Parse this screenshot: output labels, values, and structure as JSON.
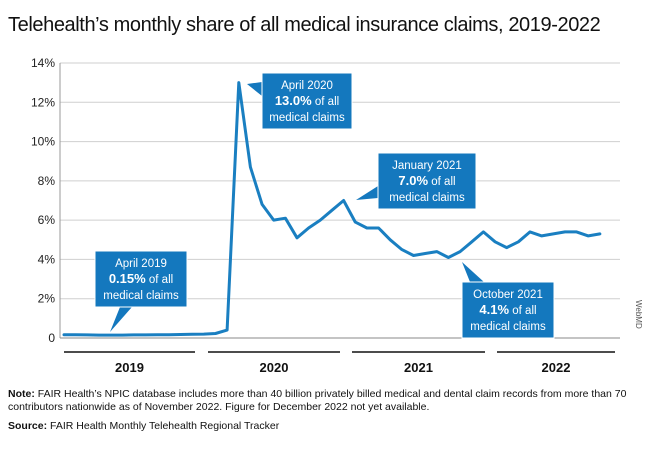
{
  "title": "Telehealth’s monthly share of all medical insurance claims, 2019-2022",
  "note": {
    "label": "Note:",
    "text": "FAIR Health’s NPIC database includes more than 40 billion privately billed medical and dental claim records from more than 70 contributors nationwide as of November 2022. Figure for December 2022 not yet available."
  },
  "source": {
    "label": "Source:",
    "text": "FAIR Health Monthly Telehealth Regional Tracker"
  },
  "watermark": "WebMD",
  "colors": {
    "line": "#1a7fc1",
    "callout": "#1478be",
    "grid": "#cfcfcf"
  },
  "chart_data": {
    "type": "line",
    "title": "Telehealth’s monthly share of all medical insurance claims, 2019-2022",
    "xlabel": "",
    "ylabel": "",
    "ylim": [
      0,
      14
    ],
    "yticks": [
      "0",
      "2%",
      "4%",
      "6%",
      "8%",
      "10%",
      "12%",
      "14%"
    ],
    "ytick_values": [
      0,
      2,
      4,
      6,
      8,
      10,
      12,
      14
    ],
    "grid": true,
    "year_groups": [
      "2019",
      "2020",
      "2021",
      "2022"
    ],
    "series": [
      {
        "x": [
          "2019-01",
          "2019-02",
          "2019-03",
          "2019-04",
          "2019-05",
          "2019-06",
          "2019-07",
          "2019-08",
          "2019-09",
          "2019-10",
          "2019-11",
          "2019-12",
          "2020-01",
          "2020-02",
          "2020-03",
          "2020-04",
          "2020-05",
          "2020-06",
          "2020-07",
          "2020-08",
          "2020-09",
          "2020-10",
          "2020-11",
          "2020-12",
          "2021-01",
          "2021-02",
          "2021-03",
          "2021-04",
          "2021-05",
          "2021-06",
          "2021-07",
          "2021-08",
          "2021-09",
          "2021-10",
          "2021-11",
          "2021-12",
          "2022-01",
          "2022-02",
          "2022-03",
          "2022-04",
          "2022-05",
          "2022-06",
          "2022-07",
          "2022-08",
          "2022-09",
          "2022-10",
          "2022-11"
        ],
        "values": [
          0.17,
          0.17,
          0.16,
          0.15,
          0.15,
          0.15,
          0.16,
          0.16,
          0.17,
          0.17,
          0.18,
          0.19,
          0.2,
          0.23,
          0.4,
          13.0,
          8.7,
          6.8,
          6.0,
          6.1,
          5.1,
          5.6,
          6.0,
          6.5,
          7.0,
          5.9,
          5.6,
          5.6,
          5.0,
          4.5,
          4.2,
          4.3,
          4.4,
          4.1,
          4.4,
          4.9,
          5.4,
          4.9,
          4.6,
          4.9,
          5.4,
          5.2,
          5.3,
          5.4,
          5.4,
          5.2,
          5.3
        ]
      }
    ],
    "annotations": [
      {
        "x": "2019-04",
        "lines": [
          "April 2019",
          "0.15% of all",
          "medical claims"
        ],
        "big": "0.15%"
      },
      {
        "x": "2020-04",
        "lines": [
          "April 2020",
          "13.0% of all",
          "medical claims"
        ],
        "big": "13.0%"
      },
      {
        "x": "2021-01",
        "lines": [
          "January 2021",
          "7.0% of all",
          "medical claims"
        ],
        "big": "7.0%"
      },
      {
        "x": "2021-10",
        "lines": [
          "October 2021",
          "4.1% of all",
          "medical claims"
        ],
        "big": "4.1%"
      }
    ]
  }
}
